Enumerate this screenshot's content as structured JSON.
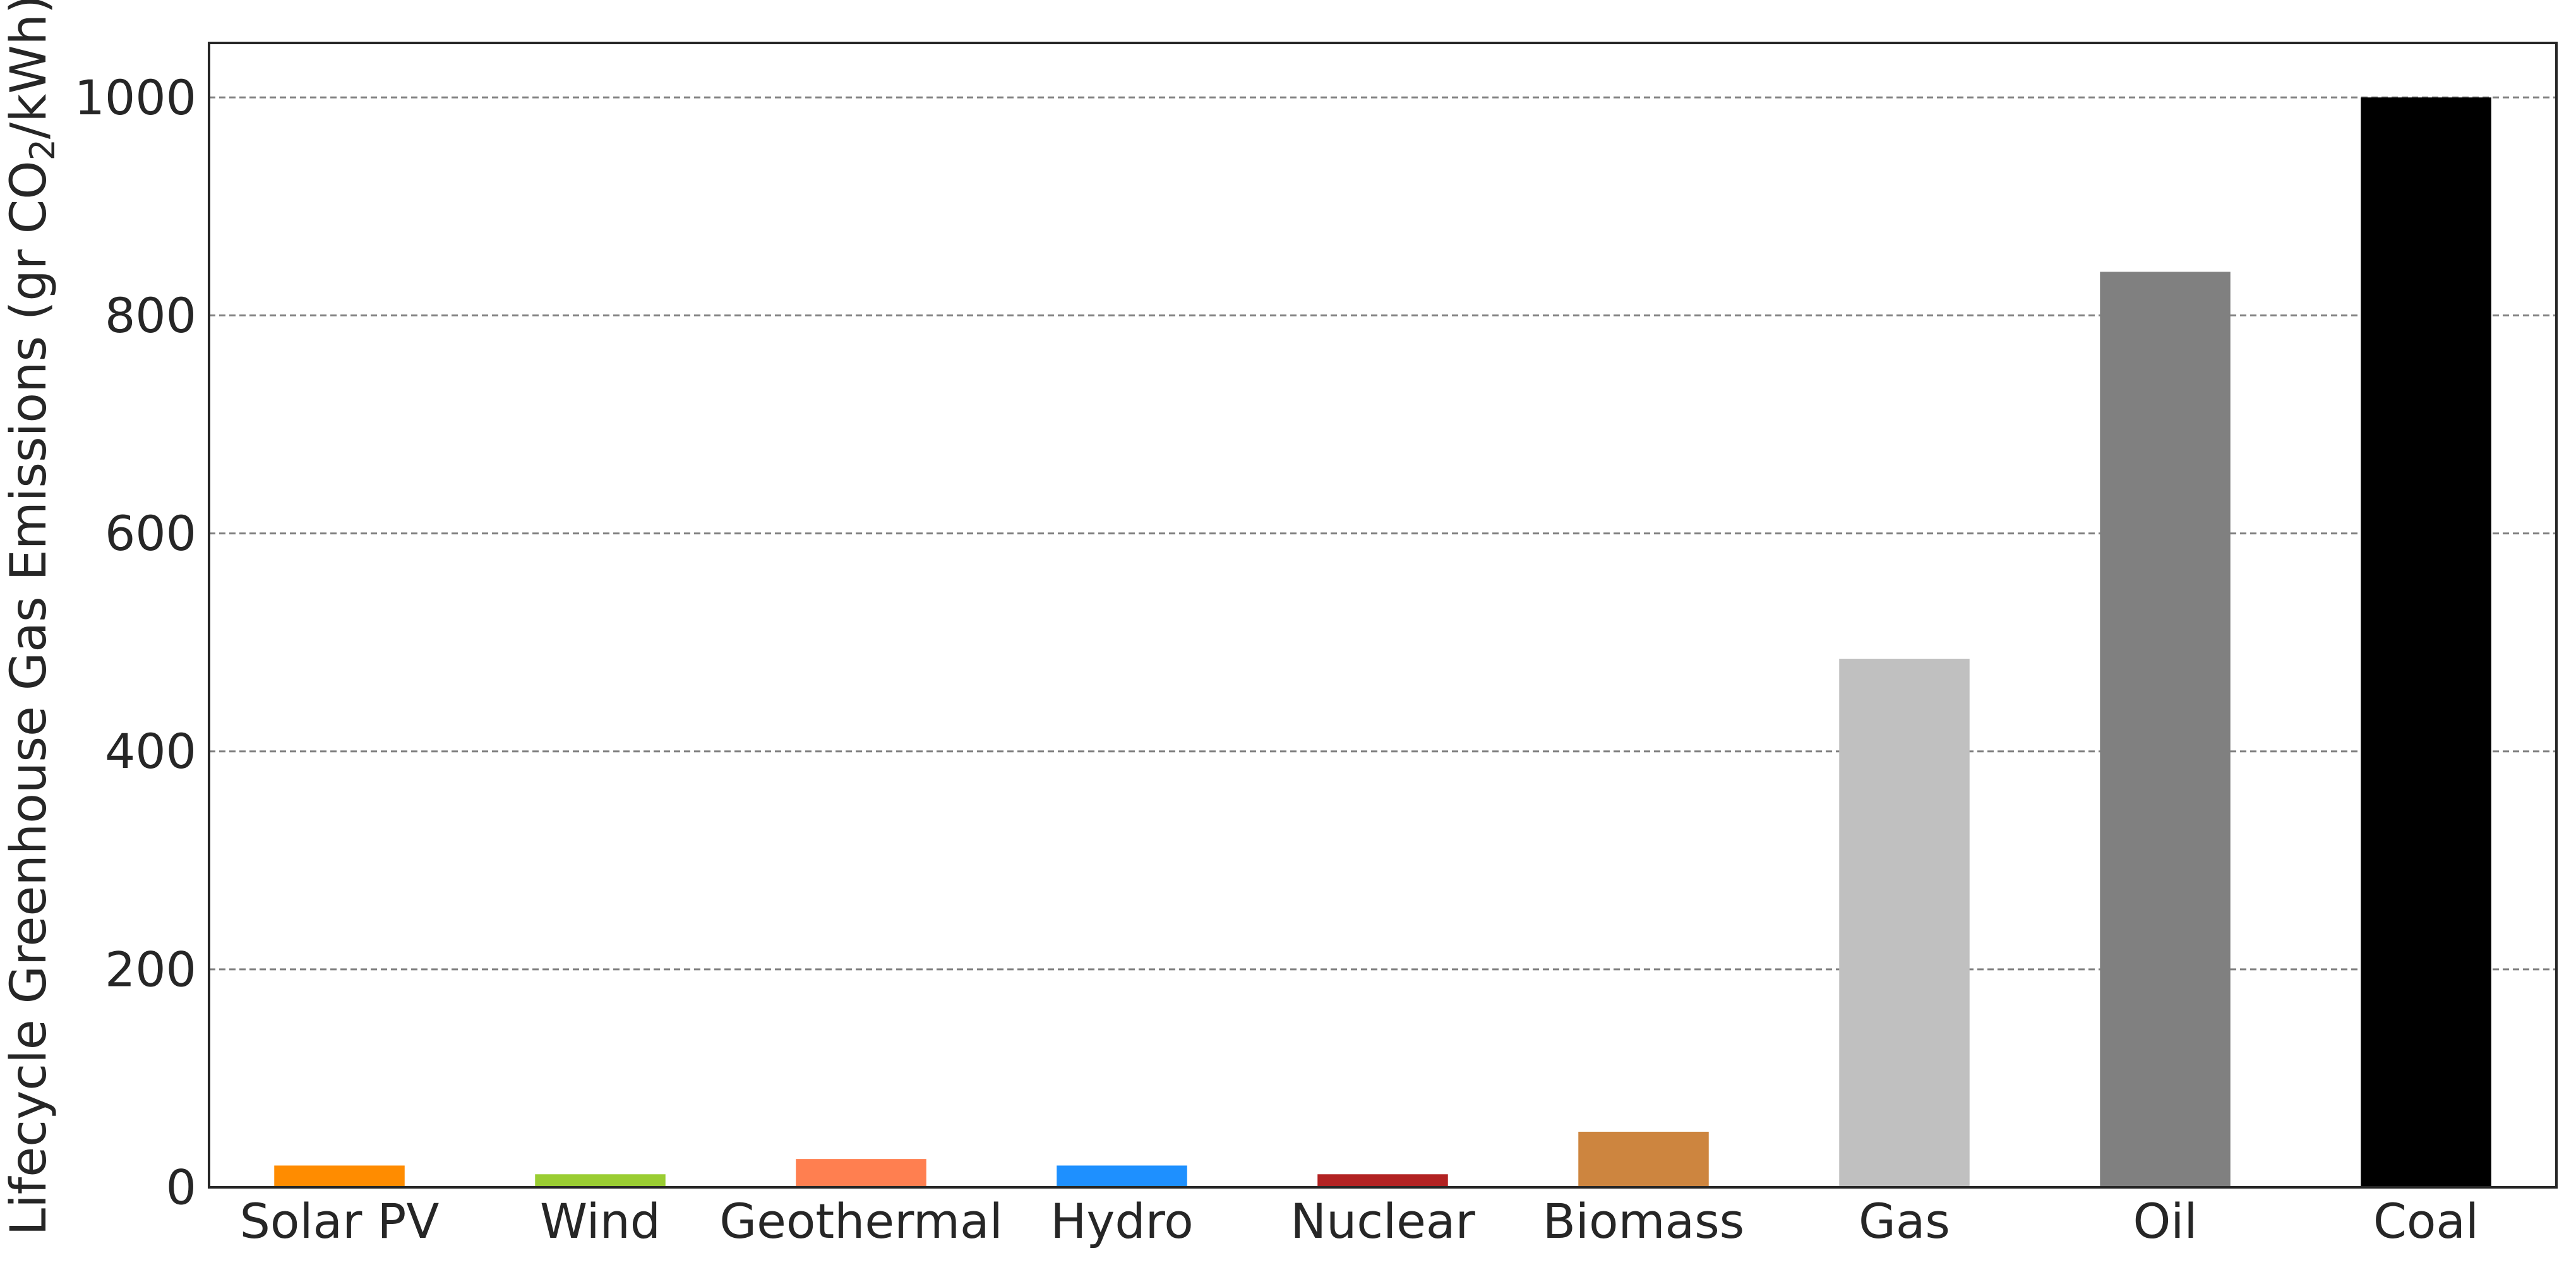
{
  "chart_data": {
    "type": "bar",
    "title": "",
    "xlabel": "",
    "ylabel": "Lifecycle Greenhouse Gas Emissions (gr CO",
    "ylabel_subscript": "2",
    "ylabel_suffix": "/kWh)",
    "categories": [
      "Solar PV",
      "Wind",
      "Geothermal",
      "Hydro",
      "Nuclear",
      "Biomass",
      "Gas",
      "Oil",
      "Coal"
    ],
    "values": [
      20,
      12,
      26,
      20,
      12,
      51,
      485,
      840,
      1000
    ],
    "colors": [
      "#ff8c00",
      "#9acd32",
      "#ff7f50",
      "#1e90ff",
      "#b22222",
      "#cd853f",
      "#c0c0c0",
      "#808080",
      "#000000"
    ],
    "ylim": [
      0,
      1050
    ],
    "yticks": [
      0,
      200,
      400,
      600,
      800,
      1000
    ],
    "grid": "y-dashed",
    "legend": "none"
  }
}
